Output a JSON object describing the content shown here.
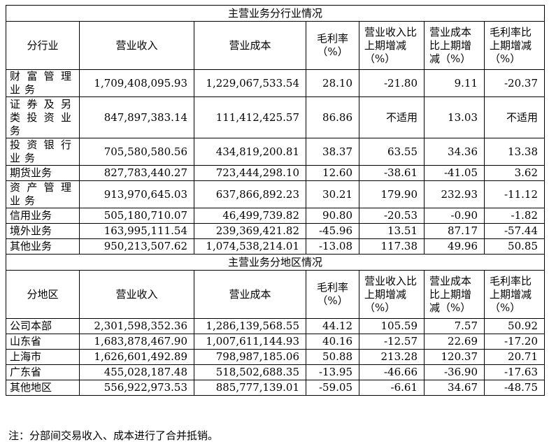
{
  "industry": {
    "title": "主营业务分行业情况",
    "headers": [
      "分行业",
      "营业收入",
      "营业成本",
      "毛利率（%）",
      "营业收入比上期增减（%）",
      "营业成本比上期增减（%）",
      "毛利率比上期增减（%）"
    ],
    "rows": [
      {
        "name": "财富管理业务",
        "revenue": "1,709,408,095.93",
        "cost": "1,229,067,533.54",
        "margin": "28.10",
        "rev_chg": "-21.80",
        "cost_chg": "9.11",
        "margin_chg": "-20.37"
      },
      {
        "name": "证券及另类投资业务",
        "revenue": "847,897,383.14",
        "cost": "111,412,425.57",
        "margin": "86.86",
        "rev_chg": "不适用",
        "cost_chg": "13.03",
        "margin_chg": "不适用"
      },
      {
        "name": "投资银行业务",
        "revenue": "705,580,580.56",
        "cost": "434,819,200.81",
        "margin": "38.37",
        "rev_chg": "63.55",
        "cost_chg": "34.36",
        "margin_chg": "13.38"
      },
      {
        "name": "期货业务",
        "revenue": "827,783,440.27",
        "cost": "723,444,298.10",
        "margin": "12.60",
        "rev_chg": "-38.61",
        "cost_chg": "-41.05",
        "margin_chg": "3.62"
      },
      {
        "name": "资产管理业务",
        "revenue": "913,970,645.03",
        "cost": "637,866,892.23",
        "margin": "30.21",
        "rev_chg": "179.90",
        "cost_chg": "232.93",
        "margin_chg": "-11.12"
      },
      {
        "name": "信用业务",
        "revenue": "505,180,710.07",
        "cost": "46,499,739.82",
        "margin": "90.80",
        "rev_chg": "-20.53",
        "cost_chg": "-0.90",
        "margin_chg": "-1.82"
      },
      {
        "name": "境外业务",
        "revenue": "163,995,111.54",
        "cost": "239,369,421.82",
        "margin": "-45.96",
        "rev_chg": "13.51",
        "cost_chg": "87.17",
        "margin_chg": "-57.44"
      },
      {
        "name": "其他业务",
        "revenue": "950,213,507.62",
        "cost": "1,074,538,214.01",
        "margin": "-13.08",
        "rev_chg": "117.38",
        "cost_chg": "49.96",
        "margin_chg": "50.85"
      }
    ]
  },
  "region": {
    "title": "主营业务分地区情况",
    "headers": [
      "分地区",
      "营业收入",
      "营业成本",
      "毛利率（%）",
      "营业收入比上期增减（%）",
      "营业成本比上期增减（%）",
      "毛利率比上期增减（%）"
    ],
    "rows": [
      {
        "name": "公司本部",
        "revenue": "2,301,598,352.36",
        "cost": "1,286,139,568.55",
        "margin": "44.12",
        "rev_chg": "105.59",
        "cost_chg": "7.57",
        "margin_chg": "50.92"
      },
      {
        "name": "山东省",
        "revenue": "1,683,878,467.90",
        "cost": "1,007,611,144.93",
        "margin": "40.16",
        "rev_chg": "-12.57",
        "cost_chg": "22.69",
        "margin_chg": "-17.20"
      },
      {
        "name": "上海市",
        "revenue": "1,626,601,492.89",
        "cost": "798,987,185.06",
        "margin": "50.88",
        "rev_chg": "213.28",
        "cost_chg": "120.37",
        "margin_chg": "20.71"
      },
      {
        "name": "广东省",
        "revenue": "455,028,187.48",
        "cost": "518,502,688.35",
        "margin": "-13.95",
        "rev_chg": "-46.66",
        "cost_chg": "-36.90",
        "margin_chg": "-17.63"
      },
      {
        "name": "其他地区",
        "revenue": "556,922,973.53",
        "cost": "885,777,139.01",
        "margin": "-59.05",
        "rev_chg": "-6.61",
        "cost_chg": "34.67",
        "margin_chg": "-48.75"
      }
    ]
  },
  "note": "注：分部间交易收入、成本进行了合并抵销。"
}
